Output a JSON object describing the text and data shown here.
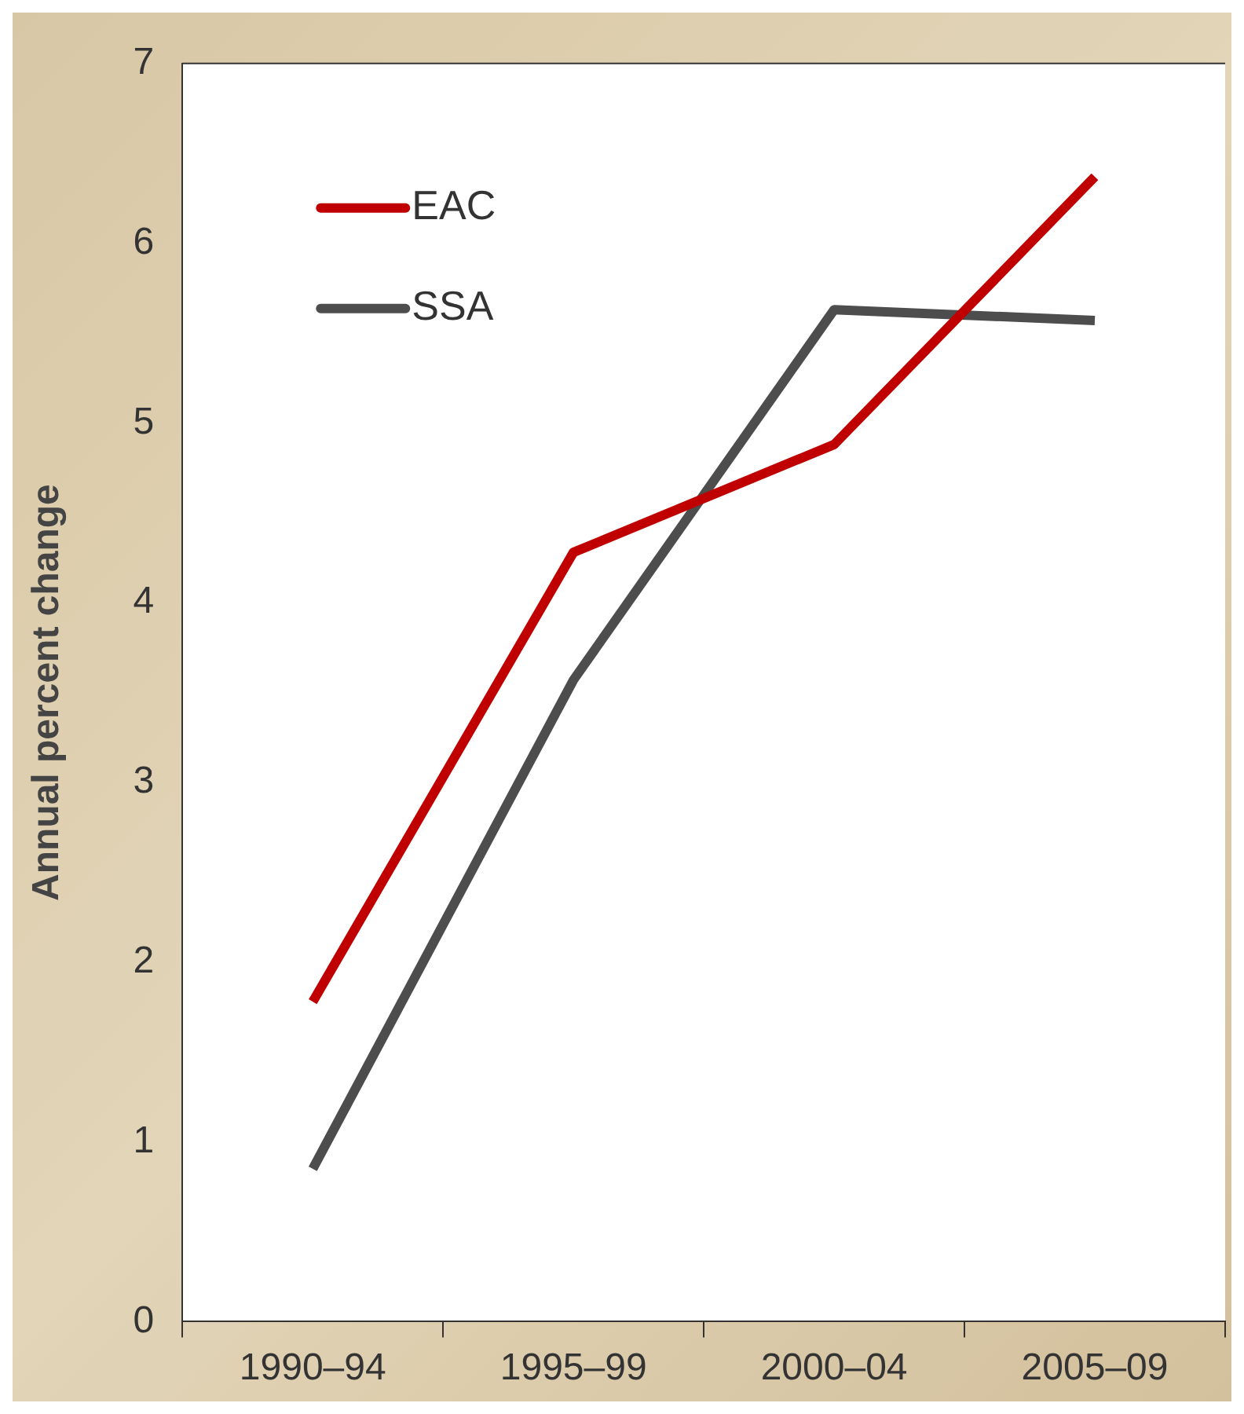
{
  "chart_data": {
    "type": "line",
    "ylabel": "Annual percent change",
    "categories": [
      "1990–94",
      "1995–99",
      "2000–04",
      "2005–09"
    ],
    "series": [
      {
        "name": "EAC",
        "color": "#c00000",
        "values": [
          1.78,
          4.28,
          4.88,
          6.37
        ]
      },
      {
        "name": "SSA",
        "color": "#4d4d4d",
        "values": [
          0.85,
          3.57,
          5.63,
          5.57
        ]
      }
    ],
    "ylim": [
      0,
      7
    ],
    "yticks": [
      0,
      1,
      2,
      3,
      4,
      5,
      6,
      7
    ],
    "grid": false,
    "legend": "top left",
    "marker": "none",
    "line_style": "solid"
  }
}
